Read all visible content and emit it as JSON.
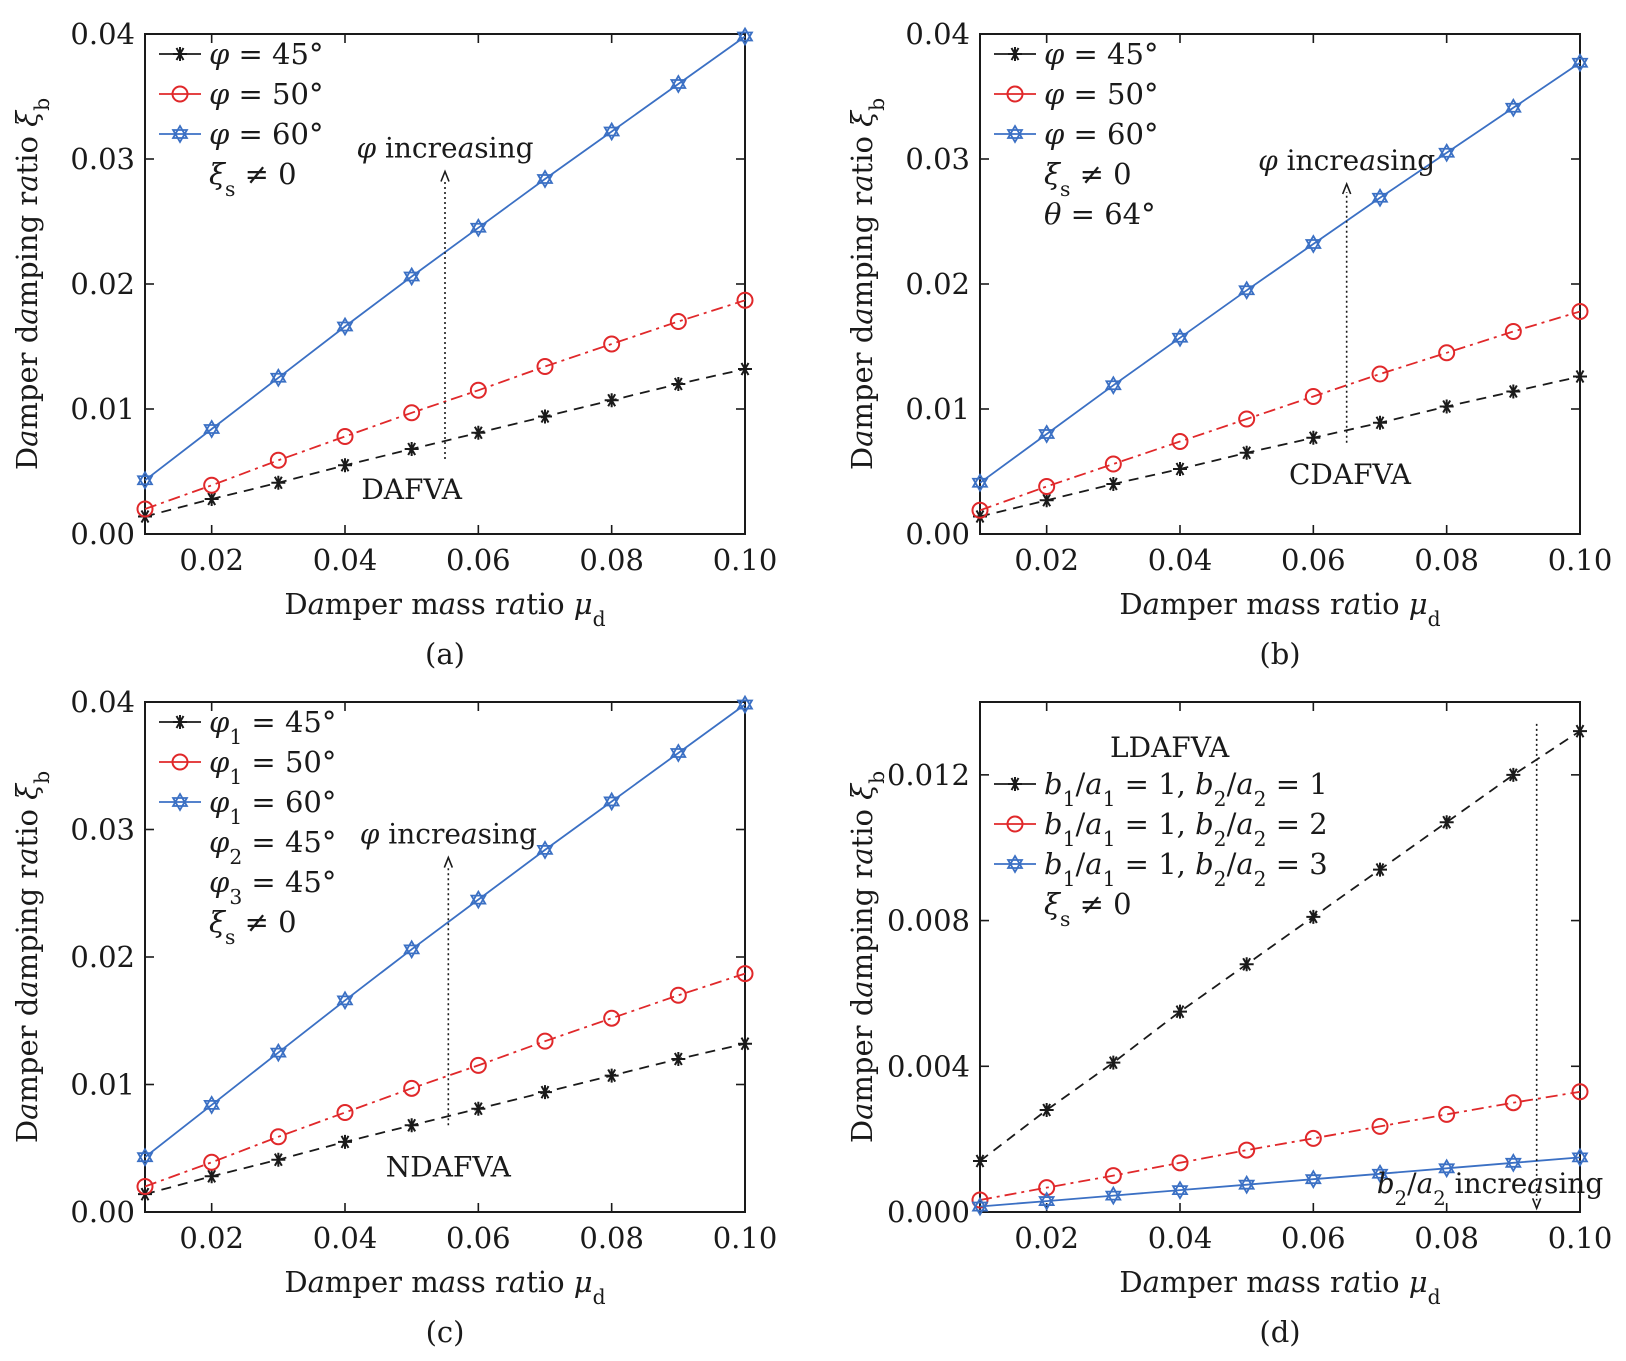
{
  "colors": {
    "black": "#1a1a1a",
    "red": "#e0282a",
    "blue": "#3b70c4"
  },
  "chart_data": [
    {
      "type": "line",
      "caption": "(a)",
      "xlabel": "Damper mass ratio μd",
      "ylabel": "Damper damping ratio ξb",
      "xlim": [
        0.01,
        0.1
      ],
      "ylim": [
        0,
        0.04
      ],
      "xticks": [
        0.02,
        0.04,
        0.06,
        0.08,
        0.1
      ],
      "xtick_labels": [
        "0.02",
        "0.04",
        "0.06",
        "0.08",
        "0.10"
      ],
      "yticks": [
        0,
        0.01,
        0.02,
        0.03,
        0.04
      ],
      "ytick_labels": [
        "0.00",
        "0.01",
        "0.02",
        "0.03",
        "0.04"
      ],
      "grid": false,
      "legend_position": "top-left",
      "x": [
        0.01,
        0.02,
        0.03,
        0.04,
        0.05,
        0.06,
        0.07,
        0.08,
        0.09,
        0.1
      ],
      "series": [
        {
          "name": "φ = 45°",
          "color": "black",
          "marker": "asterisk",
          "dash": "dashed",
          "values": [
            0.0014,
            0.0028,
            0.0041,
            0.0055,
            0.0068,
            0.0081,
            0.0094,
            0.0107,
            0.012,
            0.0132
          ]
        },
        {
          "name": "φ = 50°",
          "color": "red",
          "marker": "circle",
          "dash": "dashdot",
          "values": [
            0.002,
            0.0039,
            0.0059,
            0.0078,
            0.0097,
            0.0115,
            0.0134,
            0.0152,
            0.017,
            0.0187
          ]
        },
        {
          "name": "φ = 60°",
          "color": "blue",
          "marker": "hexagram",
          "dash": "solid",
          "values": [
            0.0043,
            0.0084,
            0.0125,
            0.0166,
            0.0206,
            0.0245,
            0.0284,
            0.0322,
            0.036,
            0.0398
          ]
        }
      ],
      "legend_notes": [
        "ξs ≠ 0"
      ],
      "arrow_label": "φ increasing",
      "arrow": {
        "x": 0.055,
        "from": 0.006,
        "to": 0.029
      },
      "model_label": "DAFVA",
      "model_label_at": [
        0.05,
        0.0028
      ]
    },
    {
      "type": "line",
      "caption": "(b)",
      "xlabel": "Damper mass ratio μd",
      "ylabel": "Damper damping ratio ξb",
      "xlim": [
        0.01,
        0.1
      ],
      "ylim": [
        0,
        0.04
      ],
      "xticks": [
        0.02,
        0.04,
        0.06,
        0.08,
        0.1
      ],
      "xtick_labels": [
        "0.02",
        "0.04",
        "0.06",
        "0.08",
        "0.10"
      ],
      "yticks": [
        0,
        0.01,
        0.02,
        0.03,
        0.04
      ],
      "ytick_labels": [
        "0.00",
        "0.01",
        "0.02",
        "0.03",
        "0.04"
      ],
      "grid": false,
      "legend_position": "top-left",
      "x": [
        0.01,
        0.02,
        0.03,
        0.04,
        0.05,
        0.06,
        0.07,
        0.08,
        0.09,
        0.1
      ],
      "series": [
        {
          "name": "φ = 45°",
          "color": "black",
          "marker": "asterisk",
          "dash": "dashed",
          "values": [
            0.0014,
            0.0027,
            0.004,
            0.0052,
            0.0065,
            0.0077,
            0.0089,
            0.0102,
            0.0114,
            0.0126
          ]
        },
        {
          "name": "φ = 50°",
          "color": "red",
          "marker": "circle",
          "dash": "dashdot",
          "values": [
            0.0019,
            0.0038,
            0.0056,
            0.0074,
            0.0092,
            0.011,
            0.0128,
            0.0145,
            0.0162,
            0.0178
          ]
        },
        {
          "name": "φ = 60°",
          "color": "blue",
          "marker": "hexagram",
          "dash": "solid",
          "values": [
            0.0041,
            0.008,
            0.0119,
            0.0157,
            0.0195,
            0.0232,
            0.0269,
            0.0305,
            0.0341,
            0.0377
          ]
        }
      ],
      "legend_notes": [
        "ξs ≠ 0",
        "θ = 64°"
      ],
      "arrow_label": "φ increasing",
      "arrow": {
        "x": 0.065,
        "from": 0.0073,
        "to": 0.028
      },
      "model_label": "CDAFVA",
      "model_label_at": [
        0.0655,
        0.004
      ]
    },
    {
      "type": "line",
      "caption": "(c)",
      "xlabel": "Damper mass ratio μd",
      "ylabel": "Damper damping ratio ξb",
      "xlim": [
        0.01,
        0.1
      ],
      "ylim": [
        0,
        0.04
      ],
      "xticks": [
        0.02,
        0.04,
        0.06,
        0.08,
        0.1
      ],
      "xtick_labels": [
        "0.02",
        "0.04",
        "0.06",
        "0.08",
        "0.10"
      ],
      "yticks": [
        0,
        0.01,
        0.02,
        0.03,
        0.04
      ],
      "ytick_labels": [
        "0.00",
        "0.01",
        "0.02",
        "0.03",
        "0.04"
      ],
      "grid": false,
      "legend_position": "top-left",
      "x": [
        0.01,
        0.02,
        0.03,
        0.04,
        0.05,
        0.06,
        0.07,
        0.08,
        0.09,
        0.1
      ],
      "series": [
        {
          "name": "φ1 = 45°",
          "color": "black",
          "marker": "asterisk",
          "dash": "dashed",
          "values": [
            0.0014,
            0.0028,
            0.0041,
            0.0055,
            0.0068,
            0.0081,
            0.0094,
            0.0107,
            0.012,
            0.0132
          ]
        },
        {
          "name": "φ1 = 50°",
          "color": "red",
          "marker": "circle",
          "dash": "dashdot",
          "values": [
            0.002,
            0.0039,
            0.0059,
            0.0078,
            0.0097,
            0.0115,
            0.0134,
            0.0152,
            0.017,
            0.0187
          ]
        },
        {
          "name": "φ1 = 60°",
          "color": "blue",
          "marker": "hexagram",
          "dash": "solid",
          "values": [
            0.0043,
            0.0084,
            0.0125,
            0.0166,
            0.0206,
            0.0245,
            0.0284,
            0.0322,
            0.036,
            0.0398
          ]
        }
      ],
      "legend_notes": [
        "φ2 = 45°",
        "φ3 = 45°",
        "ξs ≠ 0"
      ],
      "arrow_label": "φ increasing",
      "arrow": {
        "x": 0.0555,
        "from": 0.0068,
        "to": 0.0278
      },
      "model_label": "NDAFVA",
      "model_label_at": [
        0.0555,
        0.0028
      ]
    },
    {
      "type": "line",
      "caption": "(d)",
      "xlabel": "Damper mass ratio μd",
      "ylabel": "Damper damping ratio ξb",
      "xlim": [
        0.01,
        0.1
      ],
      "ylim": [
        0,
        0.014
      ],
      "xticks": [
        0.02,
        0.04,
        0.06,
        0.08,
        0.1
      ],
      "xtick_labels": [
        "0.02",
        "0.04",
        "0.06",
        "0.08",
        "0.10"
      ],
      "yticks": [
        0,
        0.004,
        0.008,
        0.012
      ],
      "ytick_labels": [
        "0.000",
        "0.004",
        "0.008",
        "0.012"
      ],
      "grid": false,
      "legend_position": "top-left",
      "x": [
        0.01,
        0.02,
        0.03,
        0.04,
        0.05,
        0.06,
        0.07,
        0.08,
        0.09,
        0.1
      ],
      "series": [
        {
          "name": "b1/a1 = 1,  b2/a2 = 1",
          "color": "black",
          "marker": "asterisk",
          "dash": "dashed",
          "values": [
            0.0014,
            0.0028,
            0.0041,
            0.0055,
            0.0068,
            0.0081,
            0.0094,
            0.0107,
            0.012,
            0.0132
          ]
        },
        {
          "name": "b1/a1 = 1,  b2/a2 = 2",
          "color": "red",
          "marker": "circle",
          "dash": "dashdot",
          "values": [
            0.00033,
            0.00067,
            0.001,
            0.00135,
            0.0017,
            0.00202,
            0.00235,
            0.00268,
            0.003,
            0.0033
          ]
        },
        {
          "name": "b1/a1 = 1,  b2/a2 = 3",
          "color": "blue",
          "marker": "hexagram",
          "dash": "solid",
          "values": [
            0.00015,
            0.0003,
            0.00045,
            0.0006,
            0.00075,
            0.0009,
            0.00105,
            0.0012,
            0.00135,
            0.0015
          ]
        }
      ],
      "legend_notes": [
        "ξs ≠ 0"
      ],
      "panel_title": "LDAFVA",
      "arrow_label": "b2/a2 increasing",
      "arrow": {
        "x": 0.0935,
        "from": 0.0134,
        "to": 0.0001
      },
      "model_label": "",
      "model_label_at": [
        0.088,
        0.0006
      ]
    }
  ]
}
